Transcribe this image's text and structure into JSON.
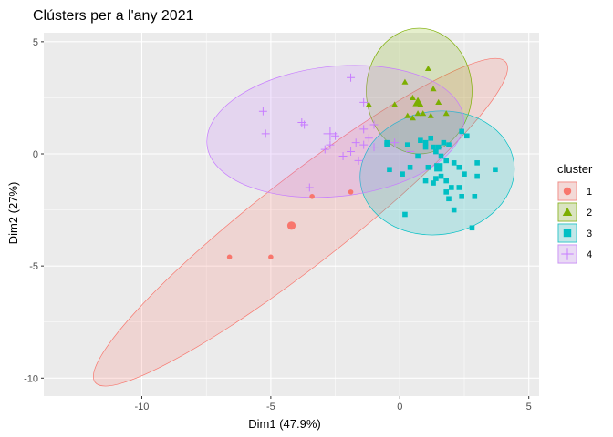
{
  "chart_data": {
    "type": "scatter",
    "title": "Clústers per a l'any 2021",
    "xlabel": "Dim1 (47.9%)",
    "ylabel": "Dim2 (27%)",
    "xlim": [
      -13.8,
      5.4
    ],
    "ylim": [
      -10.8,
      5.4
    ],
    "xticks": [
      -10,
      -5,
      0,
      5
    ],
    "yticks": [
      -10,
      -5,
      0,
      5
    ],
    "grid": true,
    "legend": {
      "title": "cluster",
      "position": "right"
    },
    "series": [
      {
        "name": "1",
        "color": "#F8766D",
        "shape": "circle",
        "points": [
          [
            -6.6,
            -4.6
          ],
          [
            -5.0,
            -4.6
          ],
          [
            -3.4,
            -1.9
          ],
          [
            -1.9,
            -1.7
          ]
        ],
        "centroid": [
          -4.2,
          -3.2
        ],
        "ellipse": {
          "center": [
            -3.85,
            -3.05
          ],
          "rx": 10.1,
          "ry": 1.95,
          "angle": 38
        }
      },
      {
        "name": "2",
        "color": "#7CAE00",
        "shape": "triangle",
        "points": [
          [
            0.2,
            3.2
          ],
          [
            1.1,
            3.8
          ],
          [
            1.3,
            2.9
          ],
          [
            1.8,
            1.8
          ],
          [
            0.5,
            2.5
          ],
          [
            0.9,
            1.8
          ],
          [
            0.7,
            1.8
          ],
          [
            0.3,
            1.7
          ],
          [
            -0.2,
            2.2
          ],
          [
            -1.2,
            2.2
          ],
          [
            0.5,
            1.6
          ],
          [
            1.2,
            1.7
          ],
          [
            0.8,
            2.2
          ],
          [
            1.5,
            2.3
          ]
        ],
        "centroid": [
          0.7,
          2.3
        ],
        "ellipse": {
          "center": [
            0.75,
            2.8
          ],
          "rx": 2.05,
          "ry": 2.8,
          "angle": 0
        }
      },
      {
        "name": "3",
        "color": "#00BFC4",
        "shape": "square",
        "points": [
          [
            -0.5,
            0.4
          ],
          [
            0.3,
            0.4
          ],
          [
            0.8,
            0.6
          ],
          [
            1.0,
            0.5
          ],
          [
            1.3,
            0.3
          ],
          [
            1.5,
            0.3
          ],
          [
            1.7,
            0.5
          ],
          [
            1.9,
            0.4
          ],
          [
            2.4,
            1.0
          ],
          [
            2.6,
            0.8
          ],
          [
            1.0,
            0.3
          ],
          [
            1.4,
            0.1
          ],
          [
            1.6,
            -0.1
          ],
          [
            1.8,
            -0.3
          ],
          [
            2.1,
            -0.4
          ],
          [
            2.3,
            -0.6
          ],
          [
            3.0,
            -0.4
          ],
          [
            3.7,
            -0.7
          ],
          [
            0.4,
            -0.6
          ],
          [
            1.1,
            -0.6
          ],
          [
            1.6,
            -1.0
          ],
          [
            1.8,
            -1.2
          ],
          [
            2.0,
            -1.5
          ],
          [
            2.3,
            -1.5
          ],
          [
            1.8,
            -1.7
          ],
          [
            2.4,
            -1.9
          ],
          [
            2.9,
            -1.9
          ],
          [
            0.1,
            -0.9
          ],
          [
            1.0,
            -1.2
          ],
          [
            1.4,
            -1.1
          ],
          [
            2.1,
            -2.5
          ],
          [
            2.8,
            -3.3
          ],
          [
            0.2,
            -2.7
          ],
          [
            1.2,
            0.7
          ],
          [
            -0.4,
            -0.7
          ],
          [
            0.7,
            -0.1
          ],
          [
            2.5,
            -0.9
          ],
          [
            3.0,
            -1.0
          ],
          [
            1.3,
            -1.3
          ],
          [
            1.9,
            -2.0
          ],
          [
            -0.5,
            0.5
          ],
          [
            1.5,
            -0.6
          ]
        ],
        "centroid": [
          1.5,
          -0.6
        ],
        "ellipse": {
          "center": [
            1.45,
            -0.85
          ],
          "rx": 3.0,
          "ry": 2.75,
          "angle": 8
        }
      },
      {
        "name": "4",
        "color": "#C77CFF",
        "shape": "plus",
        "points": [
          [
            -1.9,
            3.4
          ],
          [
            -1.4,
            2.3
          ],
          [
            -5.3,
            1.9
          ],
          [
            -3.8,
            1.4
          ],
          [
            -3.7,
            1.3
          ],
          [
            -5.2,
            0.9
          ],
          [
            -2.7,
            0.4
          ],
          [
            -2.9,
            0.2
          ],
          [
            -1.9,
            0.1
          ],
          [
            -2.2,
            -0.1
          ],
          [
            -1.4,
            0.4
          ],
          [
            -1.0,
            0.3
          ],
          [
            -3.5,
            -1.5
          ],
          [
            -1.4,
            1.1
          ],
          [
            -1.0,
            1.3
          ],
          [
            -1.2,
            0.7
          ],
          [
            0.4,
            0.1
          ],
          [
            -1.7,
            0.5
          ],
          [
            -2.5,
            0.8
          ],
          [
            -1.6,
            -0.3
          ],
          [
            -0.2,
            0.5
          ]
        ],
        "centroid": [
          -2.7,
          0.9
        ],
        "ellipse": {
          "center": [
            -2.5,
            1.0
          ],
          "rx": 5.0,
          "ry": 2.9,
          "angle": 6
        }
      }
    ]
  }
}
